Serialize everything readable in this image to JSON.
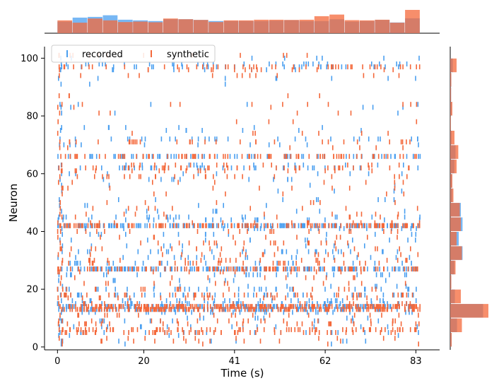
{
  "chart_data": {
    "type": "raster",
    "title": "",
    "xlabel": "Time (s)",
    "ylabel": "Neuron",
    "xlim": [
      -3,
      88.5
    ],
    "ylim": [
      -1,
      104
    ],
    "xticks": [
      0,
      20,
      41,
      62,
      83
    ],
    "yticks": [
      0,
      20,
      40,
      60,
      80,
      100
    ],
    "legend": {
      "position": "top-left",
      "entries": [
        "recorded",
        "synthetic"
      ]
    },
    "colors": {
      "recorded": "#4a9ff0",
      "synthetic": "#f4683a"
    },
    "series": [
      {
        "name": "recorded",
        "neuron_rates": [
          [
            100,
            0.15
          ],
          [
            98,
            0.35
          ],
          [
            97,
            0.25
          ],
          [
            96,
            0.1
          ],
          [
            93,
            0.08
          ],
          [
            91,
            0.05
          ],
          [
            84,
            0.05
          ],
          [
            83,
            0.04
          ],
          [
            81,
            0.03
          ],
          [
            76,
            0.1
          ],
          [
            75,
            0.08
          ],
          [
            72,
            0.3
          ],
          [
            70,
            0.1
          ],
          [
            66,
            0.9
          ],
          [
            63,
            0.2
          ],
          [
            62,
            0.35
          ],
          [
            60,
            0.15
          ],
          [
            58,
            0.12
          ],
          [
            56,
            0.08
          ],
          [
            54,
            0.08
          ],
          [
            51,
            0.08
          ],
          [
            49,
            0.1
          ],
          [
            47,
            0.1
          ],
          [
            45,
            0.15
          ],
          [
            44,
            0.2
          ],
          [
            42,
            1.7
          ],
          [
            41,
            0.25
          ],
          [
            39,
            0.2
          ],
          [
            37,
            0.25
          ],
          [
            35,
            0.15
          ],
          [
            33,
            0.35
          ],
          [
            31,
            0.25
          ],
          [
            29,
            0.25
          ],
          [
            27,
            1.7
          ],
          [
            25,
            0.2
          ],
          [
            23,
            0.15
          ],
          [
            21,
            0.15
          ],
          [
            20,
            0.45
          ],
          [
            18,
            0.45
          ],
          [
            16,
            0.35
          ],
          [
            15,
            0.45
          ],
          [
            14,
            1.6
          ],
          [
            13,
            1.3
          ],
          [
            12,
            0.25
          ],
          [
            10,
            0.15
          ],
          [
            9,
            0.2
          ],
          [
            7,
            0.2
          ],
          [
            5,
            0.25
          ],
          [
            4,
            0.1
          ],
          [
            2,
            0.08
          ],
          [
            1,
            0.03
          ]
        ]
      },
      {
        "name": "synthetic",
        "neuron_rates": [
          [
            101,
            0.15
          ],
          [
            97,
            0.55
          ],
          [
            96,
            0.2
          ],
          [
            94,
            0.1
          ],
          [
            87,
            0.05
          ],
          [
            84,
            0.08
          ],
          [
            83,
            0.04
          ],
          [
            81,
            0.05
          ],
          [
            78,
            0.05
          ],
          [
            74,
            0.08
          ],
          [
            71,
            0.4
          ],
          [
            69,
            0.1
          ],
          [
            66,
            1.0
          ],
          [
            63,
            0.2
          ],
          [
            62,
            0.45
          ],
          [
            61,
            0.15
          ],
          [
            59,
            0.2
          ],
          [
            57,
            0.15
          ],
          [
            55,
            0.08
          ],
          [
            53,
            0.08
          ],
          [
            50,
            0.08
          ],
          [
            48,
            0.1
          ],
          [
            46,
            0.1
          ],
          [
            45,
            0.1
          ],
          [
            43,
            0.2
          ],
          [
            42,
            1.5
          ],
          [
            40,
            0.25
          ],
          [
            38,
            0.2
          ],
          [
            36,
            0.25
          ],
          [
            34,
            0.2
          ],
          [
            32,
            0.3
          ],
          [
            30,
            0.25
          ],
          [
            29,
            0.35
          ],
          [
            27,
            1.3
          ],
          [
            26,
            0.2
          ],
          [
            24,
            0.15
          ],
          [
            22,
            0.15
          ],
          [
            20,
            0.3
          ],
          [
            18,
            0.55
          ],
          [
            17,
            0.3
          ],
          [
            15,
            0.3
          ],
          [
            14,
            2.5
          ],
          [
            13,
            2.2
          ],
          [
            11,
            0.25
          ],
          [
            9,
            0.2
          ],
          [
            8,
            0.25
          ],
          [
            6,
            0.85
          ],
          [
            5,
            0.55
          ],
          [
            3,
            0.15
          ],
          [
            2,
            0.08
          ],
          [
            1,
            0.03
          ]
        ]
      }
    ],
    "marginal_time_histogram": {
      "bin_width_s": 3.5,
      "recorded": [
        0.5,
        0.67,
        0.7,
        0.77,
        0.58,
        0.55,
        0.52,
        0.6,
        0.6,
        0.57,
        0.52,
        0.52,
        0.52,
        0.52,
        0.54,
        0.56,
        0.52,
        0.52,
        0.6,
        0.5,
        0.52,
        0.57,
        0.46,
        0.64
      ],
      "synthetic": [
        0.55,
        0.45,
        0.63,
        0.55,
        0.48,
        0.5,
        0.47,
        0.63,
        0.6,
        0.57,
        0.48,
        0.55,
        0.55,
        0.58,
        0.58,
        0.57,
        0.58,
        0.73,
        0.8,
        0.56,
        0.55,
        0.58,
        0.45,
        1.0
      ]
    },
    "marginal_neuron_histogram": {
      "bin_width_neurons": 5,
      "recorded": [
        0.06,
        0.32,
        1.55,
        0.22,
        0.05,
        0.2,
        0.58,
        0.4,
        0.58,
        0.5,
        0.1,
        0.08,
        0.2,
        0.25,
        0.06,
        0.02,
        0.06,
        0.04,
        0.05,
        0.12
      ],
      "synthetic": [
        0.07,
        0.55,
        1.8,
        0.5,
        0.05,
        0.25,
        0.55,
        0.3,
        0.5,
        0.45,
        0.15,
        0.1,
        0.3,
        0.38,
        0.2,
        0.03,
        0.1,
        0.04,
        0.05,
        0.3
      ]
    }
  }
}
